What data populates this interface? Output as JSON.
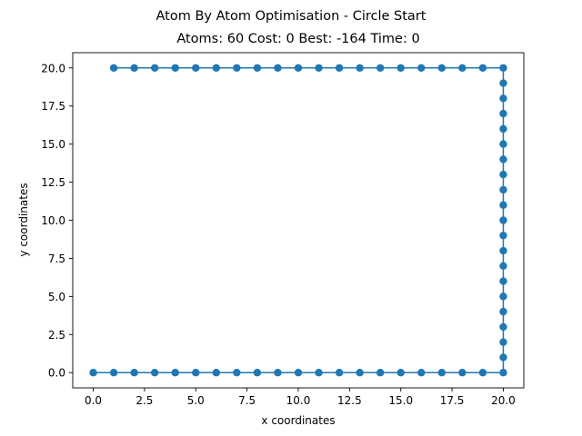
{
  "chart_data": {
    "type": "line",
    "suptitle": "Atom By Atom Optimisation - Circle Start",
    "title": "Atoms: 60 Cost: 0 Best: -164 Time: 0",
    "xlabel": "x coordinates",
    "ylabel": "y coordinates",
    "xlim": [
      -1,
      21
    ],
    "ylim": [
      -1,
      21
    ],
    "xticks": [
      0.0,
      2.5,
      5.0,
      7.5,
      10.0,
      12.5,
      15.0,
      17.5,
      20.0
    ],
    "yticks": [
      0.0,
      2.5,
      5.0,
      7.5,
      10.0,
      12.5,
      15.0,
      17.5,
      20.0
    ],
    "grid": false,
    "marker": "o",
    "series": [
      {
        "color": "#1f77b4",
        "x": [
          0,
          1,
          2,
          3,
          4,
          5,
          6,
          7,
          8,
          9,
          10,
          11,
          12,
          13,
          14,
          15,
          16,
          17,
          18,
          19,
          20,
          20,
          20,
          20,
          20,
          20,
          20,
          20,
          20,
          20,
          20,
          20,
          20,
          20,
          20,
          20,
          20,
          20,
          20,
          20,
          20,
          19,
          18,
          17,
          16,
          15,
          14,
          13,
          12,
          11,
          10,
          9,
          8,
          7,
          6,
          5,
          4,
          3,
          2,
          1
        ],
        "y": [
          0,
          0,
          0,
          0,
          0,
          0,
          0,
          0,
          0,
          0,
          0,
          0,
          0,
          0,
          0,
          0,
          0,
          0,
          0,
          0,
          0,
          1,
          2,
          3,
          4,
          5,
          6,
          7,
          8,
          9,
          10,
          11,
          12,
          13,
          14,
          15,
          16,
          17,
          18,
          19,
          20,
          20,
          20,
          20,
          20,
          20,
          20,
          20,
          20,
          20,
          20,
          20,
          20,
          20,
          20,
          20,
          20,
          20,
          20,
          20
        ]
      }
    ]
  }
}
